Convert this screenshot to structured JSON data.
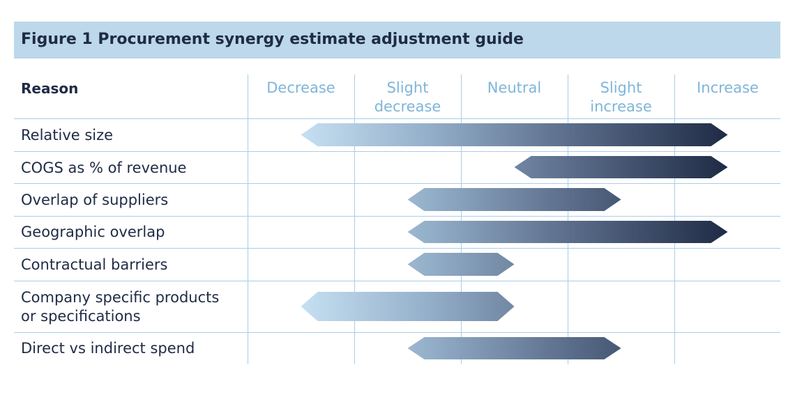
{
  "title": "Figure 1  Procurement synergy estimate adjustment guide",
  "header": {
    "reason": "Reason",
    "columns": [
      {
        "line1": "Decrease",
        "line2": ""
      },
      {
        "line1": "Slight",
        "line2": "decrease"
      },
      {
        "line1": "Neutral",
        "line2": ""
      },
      {
        "line1": "Slight",
        "line2": "increase"
      },
      {
        "line1": "Increase",
        "line2": ""
      }
    ]
  },
  "rows": [
    {
      "line1": "Relative size",
      "line2": "",
      "from": "Decrease",
      "to": "Increase"
    },
    {
      "line1": "COGS as % of revenue",
      "line2": "",
      "from": "Neutral",
      "to": "Increase"
    },
    {
      "line1": "Overlap of suppliers",
      "line2": "",
      "from": "Slight decrease",
      "to": "Slight increase"
    },
    {
      "line1": "Geographic overlap",
      "line2": "",
      "from": "Slight decrease",
      "to": "Increase"
    },
    {
      "line1": "Contractual barriers",
      "line2": "",
      "from": "Slight decrease",
      "to": "Neutral"
    },
    {
      "line1": "Company specific products",
      "line2": "or specifications",
      "from": "Decrease",
      "to": "Neutral"
    },
    {
      "line1": "Direct vs indirect spend",
      "line2": "",
      "from": "Slight decrease",
      "to": "Slight increase"
    }
  ],
  "colors": {
    "title_bg": "#bcd8ea",
    "header_text": "#7fb5d9",
    "grid_line": "#a9cde6",
    "gradient_light": "#c6e0f2",
    "gradient_dark": "#1f2b45"
  }
}
